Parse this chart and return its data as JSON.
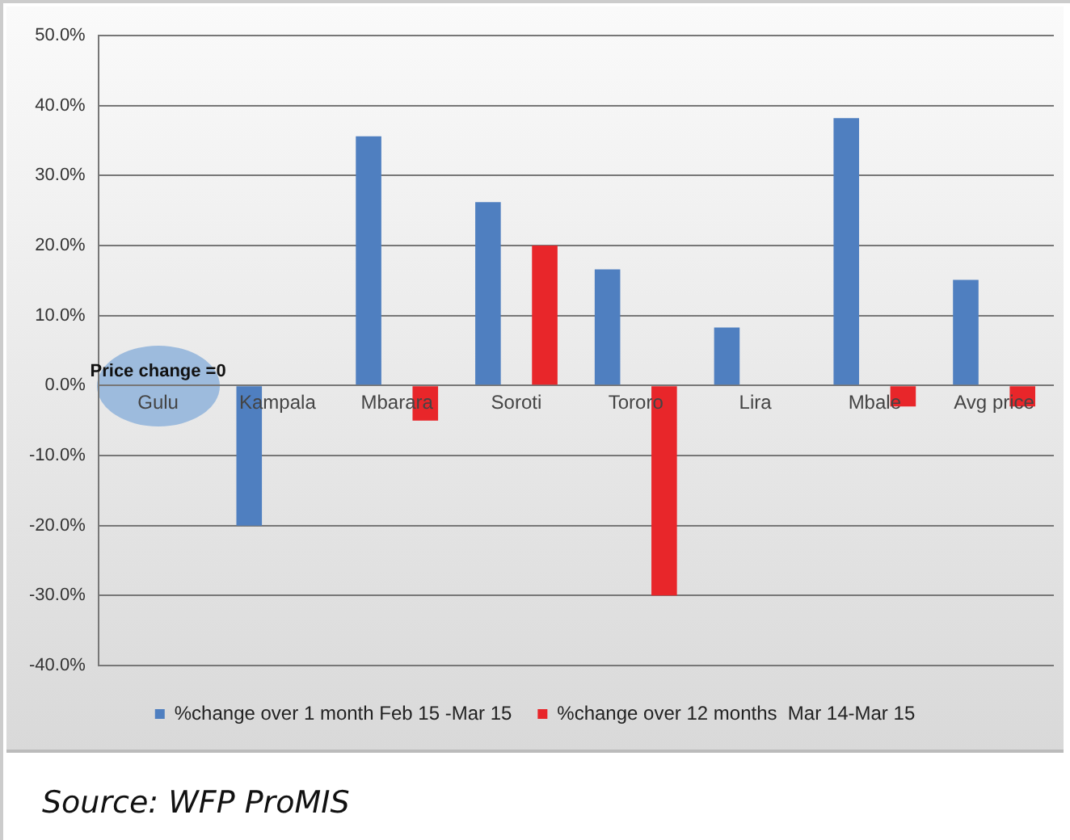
{
  "chart_data": {
    "type": "bar",
    "categories": [
      "Gulu",
      "Kampala",
      "Mbarara",
      "Soroti",
      "Tororo",
      "Lira",
      "Mbale",
      "Avg price"
    ],
    "series": [
      {
        "name": "%change over 1 month Feb 15 -Mar 15",
        "color": "#4f7fc0",
        "values": [
          0,
          -20,
          35.6,
          26.2,
          16.6,
          8.3,
          38.2,
          15.1
        ]
      },
      {
        "name": "%change over 12 months  Mar 14-Mar 15",
        "color": "#e8262a",
        "values": [
          0,
          null,
          -5,
          20,
          -30,
          null,
          -3,
          -3
        ]
      }
    ],
    "ylim": [
      -40,
      50
    ],
    "yticks": [
      {
        "value": -40,
        "label": "-40.0%"
      },
      {
        "value": -30,
        "label": "-30.0%"
      },
      {
        "value": -20,
        "label": "-20.0%"
      },
      {
        "value": -10,
        "label": "-10.0%"
      },
      {
        "value": 0,
        "label": "0.0%"
      },
      {
        "value": 10,
        "label": "10.0%"
      },
      {
        "value": 20,
        "label": "20.0%"
      },
      {
        "value": 30,
        "label": "30.0%"
      },
      {
        "value": 40,
        "label": "40.0%"
      },
      {
        "value": 50,
        "label": "50.0%"
      }
    ],
    "grid": "y",
    "legend": "bottom",
    "annotations": [
      {
        "text": "Price change =0",
        "x": "Gulu",
        "y": 0
      },
      "Source: WFP ProMIS"
    ]
  }
}
